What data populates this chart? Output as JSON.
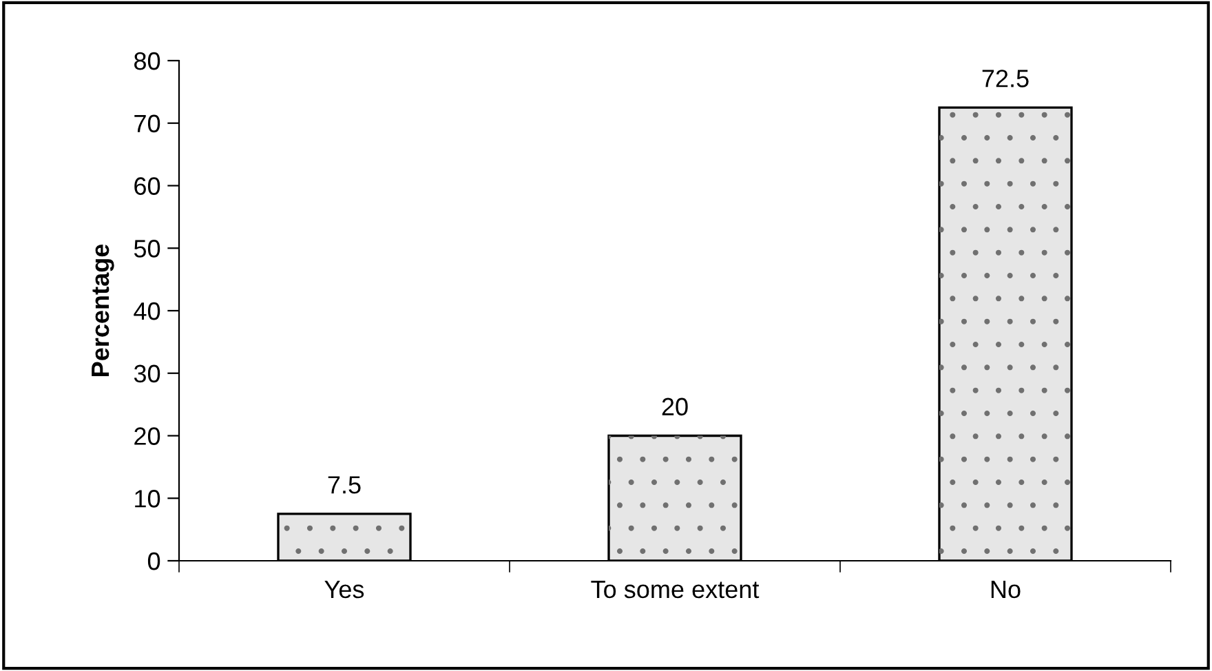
{
  "chart_data": {
    "type": "bar",
    "ylabel": "Percentage",
    "categories": [
      "Yes",
      "To some extent",
      "No"
    ],
    "values": [
      7.5,
      20,
      72.5
    ],
    "color": "#e6e6e6",
    "ylim": [
      0,
      80
    ],
    "yticks": [
      0,
      10,
      20,
      30,
      40,
      50,
      60,
      70,
      80
    ],
    "data_labels": true,
    "grid": false
  }
}
